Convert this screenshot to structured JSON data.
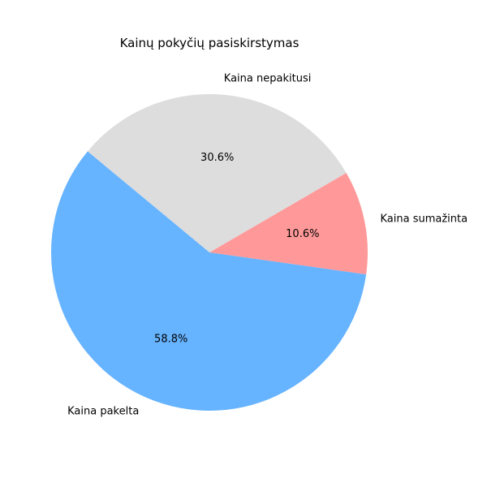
{
  "chart_data": {
    "type": "pie",
    "title": "Kainų pokyčių pasiskirstymas",
    "slices": [
      {
        "label": "Kaina sumažinta",
        "value": 10.6,
        "pct_label": "10.6%",
        "color": "#ff9999"
      },
      {
        "label": "Kaina nepakitusi",
        "value": 30.6,
        "pct_label": "30.6%",
        "color": "#dddddd"
      },
      {
        "label": "Kaina pakelta",
        "value": 58.8,
        "pct_label": "58.8%",
        "color": "#66b3ff"
      }
    ],
    "start_angle_deg": -8,
    "direction": "counterclockwise"
  }
}
